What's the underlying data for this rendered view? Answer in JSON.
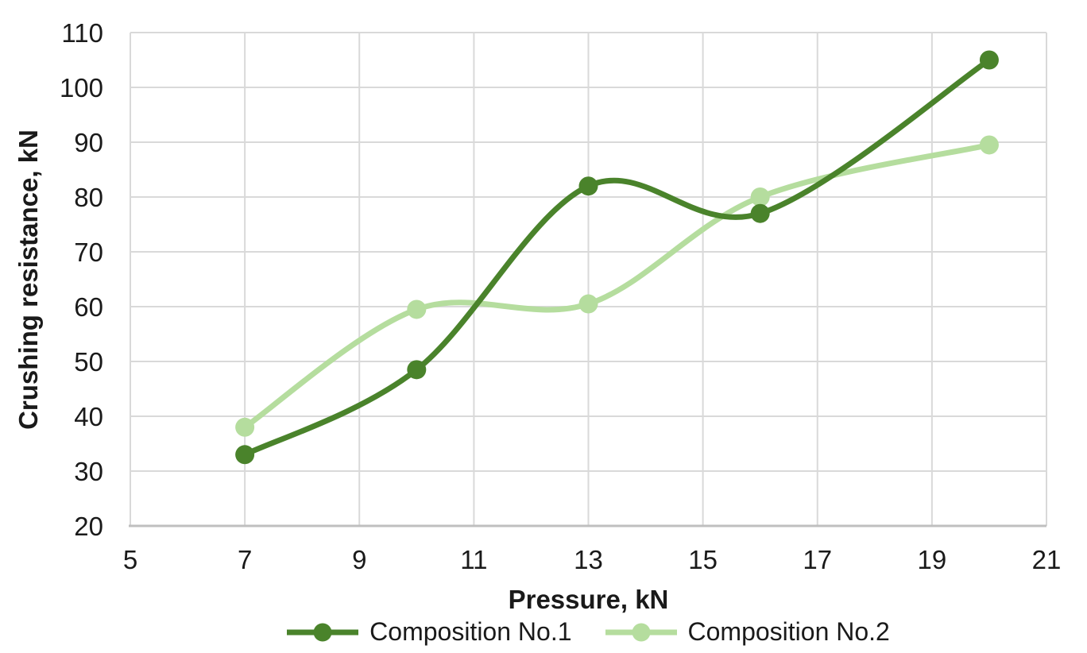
{
  "chart_data": {
    "type": "line",
    "line_style": "smooth",
    "marker": "circle",
    "title": "",
    "xlabel": "Pressure, kN",
    "ylabel": "Crushing resistance, kN",
    "xlim": [
      5,
      21
    ],
    "ylim": [
      20,
      110
    ],
    "x_ticks": [
      5,
      7,
      9,
      11,
      13,
      15,
      17,
      19,
      21
    ],
    "y_ticks": [
      20,
      30,
      40,
      50,
      60,
      70,
      80,
      90,
      100,
      110
    ],
    "grid": true,
    "legend_position": "bottom",
    "x": [
      7,
      10,
      13,
      16,
      20
    ],
    "series": [
      {
        "name": "Composition No.1",
        "values": [
          33,
          48.5,
          82,
          77,
          105
        ],
        "color": "#4a832b",
        "z": 2
      },
      {
        "name": "Composition No.2",
        "values": [
          38,
          59.5,
          60.5,
          80,
          89.5
        ],
        "color": "#b5dd9e",
        "z": 1
      }
    ]
  },
  "colors": {
    "background": "#ffffff",
    "gridline": "#d9d9d9",
    "axis_line": "#bfbfbf",
    "text": "#1a1a1a"
  }
}
